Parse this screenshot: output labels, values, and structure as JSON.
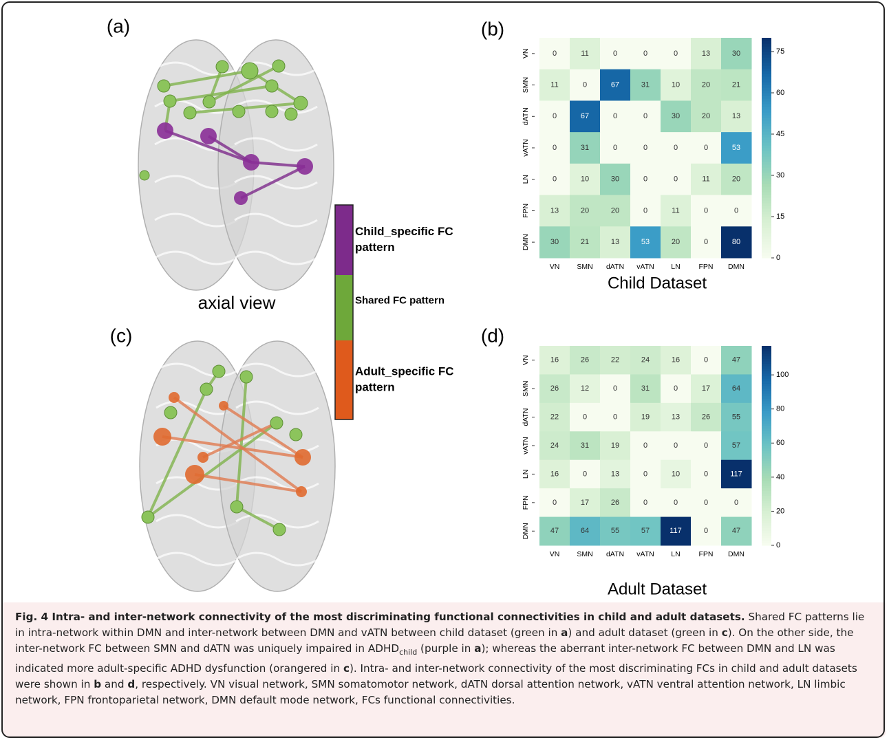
{
  "panels": {
    "a": "(a)",
    "b": "(b)",
    "c": "(c)",
    "d": "(d)"
  },
  "brain_view_label": "axial view",
  "legend": {
    "items": [
      {
        "label_lines": [
          "Child_specific FC",
          "pattern"
        ],
        "color": "#7d2b8b"
      },
      {
        "label_lines": [
          "Shared  FC pattern"
        ],
        "color": "#6ea83a"
      },
      {
        "label_lines": [
          "Adult_specific FC",
          "pattern"
        ],
        "color": "#df5a1c"
      }
    ]
  },
  "chart_data": [
    {
      "type": "heatmap",
      "title": "Child Dataset",
      "x_categories": [
        "VN",
        "SMN",
        "dATN",
        "vATN",
        "LN",
        "FPN",
        "DMN"
      ],
      "y_categories": [
        "VN",
        "SMN",
        "dATN",
        "vATN",
        "LN",
        "FPN",
        "DMN"
      ],
      "values": [
        [
          0,
          11,
          0,
          0,
          0,
          13,
          30
        ],
        [
          11,
          0,
          67,
          31,
          10,
          20,
          21
        ],
        [
          0,
          67,
          0,
          0,
          30,
          20,
          13
        ],
        [
          0,
          31,
          0,
          0,
          0,
          0,
          53
        ],
        [
          0,
          10,
          30,
          0,
          0,
          11,
          20
        ],
        [
          13,
          20,
          20,
          0,
          11,
          0,
          0
        ],
        [
          30,
          21,
          13,
          53,
          20,
          0,
          80
        ]
      ],
      "zlim": [
        0,
        80
      ],
      "colorbar_ticks": [
        0,
        15,
        30,
        45,
        60,
        75
      ],
      "colormap": [
        "#f7fcf0",
        "#d8f0d3",
        "#a8dcb5",
        "#6cc3c4",
        "#3a9cc7",
        "#1668a8",
        "#08306b"
      ]
    },
    {
      "type": "heatmap",
      "title": "Adult Dataset",
      "x_categories": [
        "VN",
        "SMN",
        "dATN",
        "vATN",
        "LN",
        "FPN",
        "DMN"
      ],
      "y_categories": [
        "VN",
        "SMN",
        "dATN",
        "vATN",
        "LN",
        "FPN",
        "DMN"
      ],
      "values": [
        [
          16,
          26,
          22,
          24,
          16,
          0,
          47
        ],
        [
          26,
          12,
          0,
          31,
          0,
          17,
          64
        ],
        [
          22,
          0,
          0,
          19,
          13,
          26,
          55
        ],
        [
          24,
          31,
          19,
          0,
          0,
          0,
          57
        ],
        [
          16,
          0,
          13,
          0,
          10,
          0,
          117
        ],
        [
          0,
          17,
          26,
          0,
          0,
          0,
          0
        ],
        [
          47,
          64,
          55,
          57,
          117,
          0,
          47
        ]
      ],
      "zlim": [
        0,
        117
      ],
      "colorbar_ticks": [
        0,
        20,
        40,
        60,
        80,
        100
      ],
      "colormap": [
        "#f7fcf0",
        "#d8f0d3",
        "#a8dcb5",
        "#6cc3c4",
        "#3a9cc7",
        "#1668a8",
        "#08306b"
      ]
    }
  ],
  "caption": {
    "runs": [
      {
        "text": "Fig. 4 Intra- and inter-network connectivity of the most discriminating functional connectivities in child and adult datasets.",
        "bold": true
      },
      {
        "text": " Shared FC patterns lie in intra-network within DMN and inter-network between DMN and vATN between child dataset (green in "
      },
      {
        "text": "a",
        "bold": true
      },
      {
        "text": ") and adult dataset (green in "
      },
      {
        "text": "c",
        "bold": true
      },
      {
        "text": "). On the other side, the inter-network FC between SMN and dATN was uniquely impaired in ADHD"
      },
      {
        "text": "child",
        "sub": true
      },
      {
        "text": " (purple in "
      },
      {
        "text": "a",
        "bold": true
      },
      {
        "text": "); whereas the aberrant inter-network FC between DMN and LN was indicated more adult-specific ADHD dysfunction (orangered in "
      },
      {
        "text": "c",
        "bold": true
      },
      {
        "text": "). Intra- and inter-network connectivity of the most discriminating FCs in child and adult datasets were shown in "
      },
      {
        "text": "b",
        "bold": true
      },
      {
        "text": " and "
      },
      {
        "text": "d",
        "bold": true
      },
      {
        "text": ", respectively. VN visual network, SMN somatomotor network, dATN dorsal attention network, vATN ventral attention network, LN limbic network, FPN frontoparietal network, DMN default mode network, FCs functional connectivities."
      }
    ]
  }
}
